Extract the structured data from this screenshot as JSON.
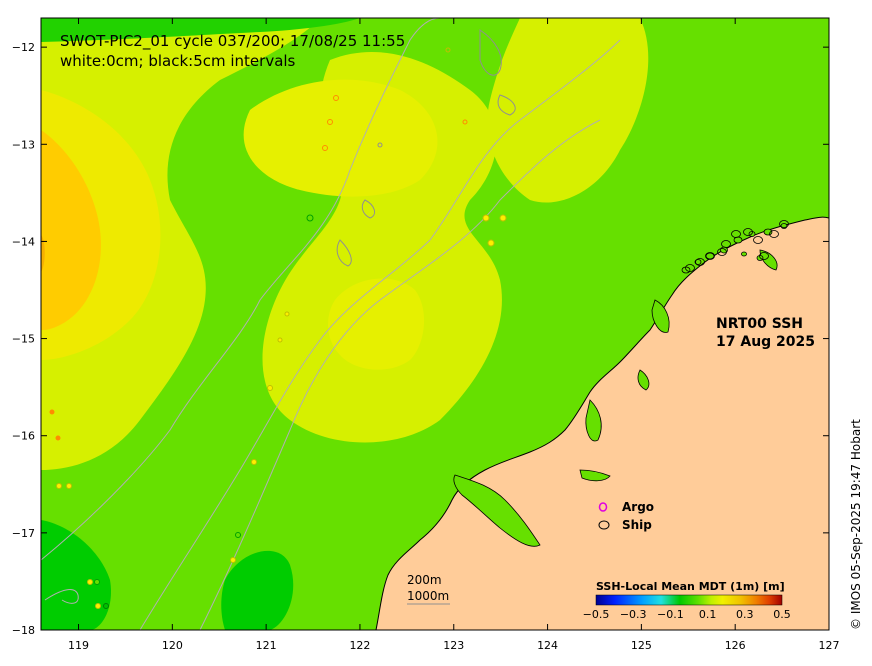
{
  "title_line1": "SWOT-PIC2_01 cycle 037/200; 17/08/25 11:55",
  "title_line2": "white:0cm; black:5cm intervals",
  "product_line1": "NRT00 SSH",
  "product_line2": "17 Aug 2025",
  "legend": {
    "argo_label": "Argo",
    "ship_label": "Ship",
    "argo_color": "#e000e0",
    "ship_color": "#000000"
  },
  "scale_bar": {
    "label_1": "200m",
    "label_2": "1000m"
  },
  "colorbar": {
    "title": "SSH-Local Mean MDT (1m) [m]",
    "tick_labels": [
      "−0.5",
      "−0.3",
      "−0.1",
      "0.1",
      "0.3",
      "0.5"
    ],
    "colors": [
      "#00008f",
      "#0020ff",
      "#00a0ff",
      "#20e0e0",
      "#00c800",
      "#60e000",
      "#c0f000",
      "#f0f000",
      "#f0c000",
      "#f08000",
      "#e04000",
      "#a00000"
    ]
  },
  "credit": "© IMOS 05-Sep-2025 19:47 Hobart",
  "map_data": {
    "lon_range": [
      118.6,
      127.0
    ],
    "lat_range": [
      -18.0,
      -11.7
    ],
    "x_ticks": [
      119,
      120,
      121,
      122,
      123,
      124,
      125,
      126,
      127
    ],
    "y_ticks": [
      -12,
      -13,
      -14,
      -15,
      -16,
      -17,
      -18
    ],
    "x_tick_labels": [
      "119",
      "120",
      "121",
      "122",
      "123",
      "124",
      "125",
      "126",
      "127"
    ],
    "y_tick_labels": [
      "−12",
      "−13",
      "−14",
      "−15",
      "−16",
      "−17",
      "−18"
    ],
    "colors": {
      "sea_base": "#66e000",
      "ssh_high": "#e6f000",
      "ssh_higher": "#f6e600",
      "ssh_max": "#ffcc00",
      "ssh_low": "#00d200",
      "land": "#ffcc99",
      "isobath": "#b0b0b0"
    }
  }
}
